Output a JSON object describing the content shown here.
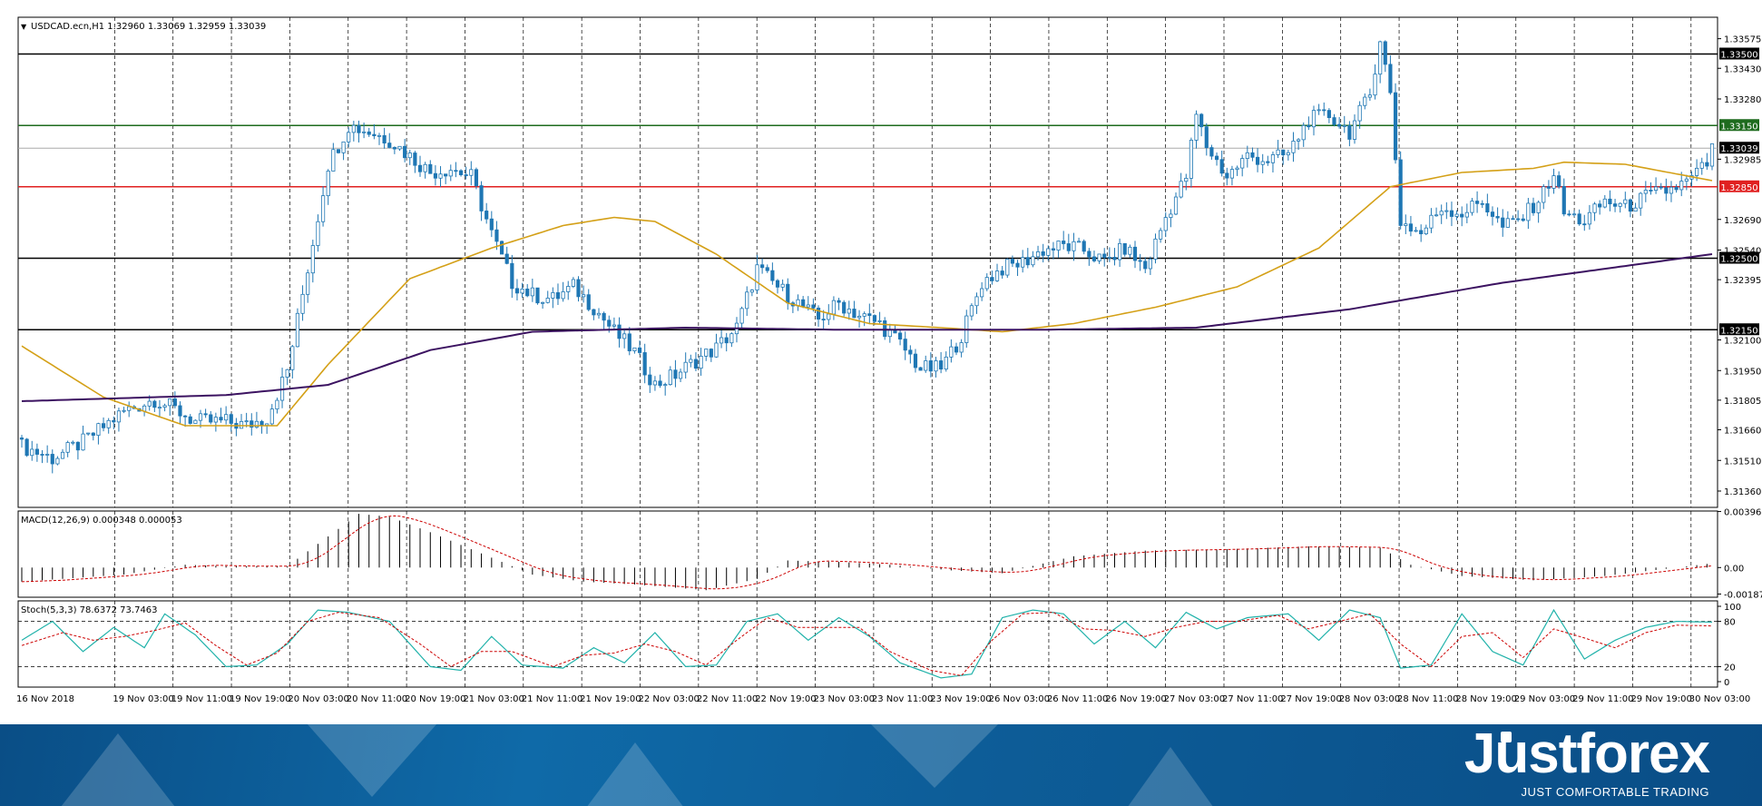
{
  "chart_data": [
    {
      "type": "candlestick",
      "title": "USDCAD.ecn,H1  1.32960 1.33069 1.32959 1.33039",
      "y_ticks": [
        "1.33575",
        "1.33430",
        "1.33280",
        "1.32985",
        "1.32690",
        "1.32540",
        "1.32395",
        "1.32100",
        "1.31950",
        "1.31805",
        "1.31660",
        "1.31510",
        "1.31360"
      ],
      "ylim": [
        1.3128,
        1.3368
      ],
      "levels": [
        {
          "label": "1.33500",
          "value": 1.335,
          "color": "#000000"
        },
        {
          "label": "1.33150",
          "value": 1.3315,
          "color": "#1e6b1e"
        },
        {
          "label": "1.33039",
          "value": 1.33039,
          "color": "#aaaaaa"
        },
        {
          "label": "1.32850",
          "value": 1.3285,
          "color": "#e02020"
        },
        {
          "label": "1.32500",
          "value": 1.325,
          "color": "#000000"
        },
        {
          "label": "1.32150",
          "value": 1.3215,
          "color": "#000000"
        }
      ],
      "close_anchors": [
        [
          0,
          1.3158
        ],
        [
          6,
          1.3152
        ],
        [
          12,
          1.316
        ],
        [
          20,
          1.3175
        ],
        [
          26,
          1.3181
        ],
        [
          30,
          1.3176
        ],
        [
          34,
          1.317
        ],
        [
          40,
          1.317
        ],
        [
          44,
          1.3168
        ],
        [
          48,
          1.3172
        ],
        [
          52,
          1.3195
        ],
        [
          56,
          1.3245
        ],
        [
          60,
          1.3296
        ],
        [
          64,
          1.3315
        ],
        [
          68,
          1.3312
        ],
        [
          72,
          1.3308
        ],
        [
          76,
          1.33
        ],
        [
          80,
          1.3292
        ],
        [
          84,
          1.3294
        ],
        [
          88,
          1.329
        ],
        [
          92,
          1.3262
        ],
        [
          96,
          1.3238
        ],
        [
          100,
          1.3232
        ],
        [
          104,
          1.323
        ],
        [
          108,
          1.3236
        ],
        [
          112,
          1.3226
        ],
        [
          116,
          1.3214
        ],
        [
          120,
          1.3204
        ],
        [
          124,
          1.3188
        ],
        [
          128,
          1.3193
        ],
        [
          132,
          1.32
        ],
        [
          136,
          1.3206
        ],
        [
          140,
          1.3216
        ],
        [
          144,
          1.3245
        ],
        [
          148,
          1.3236
        ],
        [
          152,
          1.3228
        ],
        [
          156,
          1.322
        ],
        [
          160,
          1.3228
        ],
        [
          164,
          1.3222
        ],
        [
          168,
          1.3218
        ],
        [
          172,
          1.3208
        ],
        [
          176,
          1.3196
        ],
        [
          180,
          1.3196
        ],
        [
          184,
          1.3212
        ],
        [
          188,
          1.3238
        ],
        [
          192,
          1.3245
        ],
        [
          196,
          1.3248
        ],
        [
          200,
          1.3254
        ],
        [
          204,
          1.3256
        ],
        [
          208,
          1.3254
        ],
        [
          212,
          1.3248
        ],
        [
          216,
          1.3255
        ],
        [
          220,
          1.3245
        ],
        [
          224,
          1.327
        ],
        [
          228,
          1.329
        ],
        [
          230,
          1.332
        ],
        [
          232,
          1.3305
        ],
        [
          236,
          1.329
        ],
        [
          240,
          1.33
        ],
        [
          244,
          1.3298
        ],
        [
          248,
          1.3301
        ],
        [
          252,
          1.3318
        ],
        [
          256,
          1.332
        ],
        [
          260,
          1.3312
        ],
        [
          264,
          1.333
        ],
        [
          266,
          1.3358
        ],
        [
          268,
          1.333
        ],
        [
          270,
          1.3268
        ],
        [
          274,
          1.3262
        ],
        [
          278,
          1.3275
        ],
        [
          282,
          1.3272
        ],
        [
          286,
          1.3278
        ],
        [
          290,
          1.3265
        ],
        [
          294,
          1.327
        ],
        [
          298,
          1.3282
        ],
        [
          300,
          1.3292
        ],
        [
          302,
          1.3272
        ],
        [
          306,
          1.3268
        ],
        [
          310,
          1.3278
        ],
        [
          314,
          1.3275
        ],
        [
          318,
          1.328
        ],
        [
          322,
          1.3283
        ],
        [
          326,
          1.3287
        ],
        [
          330,
          1.3296
        ],
        [
          331,
          1.33039
        ]
      ],
      "ma_fast_color": "#d4a017",
      "ma_fast_anchors": [
        [
          0,
          1.3207
        ],
        [
          16,
          1.3182
        ],
        [
          32,
          1.3168
        ],
        [
          50,
          1.3168
        ],
        [
          60,
          1.3198
        ],
        [
          76,
          1.324
        ],
        [
          92,
          1.3255
        ],
        [
          106,
          1.3266
        ],
        [
          116,
          1.327
        ],
        [
          124,
          1.3268
        ],
        [
          136,
          1.3252
        ],
        [
          150,
          1.3228
        ],
        [
          166,
          1.3218
        ],
        [
          180,
          1.3216
        ],
        [
          192,
          1.3214
        ],
        [
          206,
          1.3218
        ],
        [
          222,
          1.3226
        ],
        [
          238,
          1.3236
        ],
        [
          254,
          1.3255
        ],
        [
          268,
          1.3285
        ],
        [
          282,
          1.3292
        ],
        [
          296,
          1.3294
        ],
        [
          302,
          1.3297
        ],
        [
          314,
          1.3296
        ],
        [
          331,
          1.3288
        ]
      ],
      "ma_slow_color": "#3c1361",
      "ma_slow_anchors": [
        [
          0,
          1.318
        ],
        [
          40,
          1.3183
        ],
        [
          60,
          1.3188
        ],
        [
          80,
          1.3205
        ],
        [
          100,
          1.3214
        ],
        [
          130,
          1.3216
        ],
        [
          160,
          1.3215
        ],
        [
          200,
          1.3215
        ],
        [
          230,
          1.3216
        ],
        [
          260,
          1.3225
        ],
        [
          290,
          1.3238
        ],
        [
          331,
          1.3252
        ]
      ]
    },
    {
      "type": "bar",
      "title": "MACD(12,26,9) 0.000348 0.000053",
      "y_ticks": [
        "0.003965",
        "0.00",
        "-0.001873"
      ],
      "ylim": [
        -0.0021,
        0.004
      ],
      "hist_anchors": [
        [
          0,
          -0.001
        ],
        [
          20,
          -0.0005
        ],
        [
          32,
          0.0002
        ],
        [
          40,
          0.0001
        ],
        [
          52,
          0.0001
        ],
        [
          60,
          0.0022
        ],
        [
          66,
          0.0038
        ],
        [
          72,
          0.0036
        ],
        [
          80,
          0.0025
        ],
        [
          90,
          0.001
        ],
        [
          100,
          -0.0005
        ],
        [
          110,
          -0.001
        ],
        [
          120,
          -0.0012
        ],
        [
          134,
          -0.0016
        ],
        [
          144,
          -0.0008
        ],
        [
          150,
          0.0005
        ],
        [
          160,
          0.0004
        ],
        [
          170,
          0.0002
        ],
        [
          182,
          -0.0002
        ],
        [
          192,
          -0.0004
        ],
        [
          206,
          0.0008
        ],
        [
          220,
          0.0012
        ],
        [
          236,
          0.0013
        ],
        [
          252,
          0.0015
        ],
        [
          266,
          0.0014
        ],
        [
          272,
          0.0002
        ],
        [
          282,
          -0.0006
        ],
        [
          296,
          -0.0009
        ],
        [
          310,
          -0.0006
        ],
        [
          331,
          0.0003
        ]
      ],
      "signal_color": "#cc0000"
    },
    {
      "type": "line",
      "title": "Stoch(5,3,3) 78.6372 73.7463",
      "y_ticks": [
        "100",
        "80",
        "20",
        "0"
      ],
      "ylim": [
        0,
        100
      ],
      "k_color": "#20b2aa",
      "d_color": "#cc0000",
      "k_anchors": [
        [
          0,
          55
        ],
        [
          6,
          80
        ],
        [
          12,
          40
        ],
        [
          18,
          72
        ],
        [
          24,
          45
        ],
        [
          28,
          90
        ],
        [
          34,
          62
        ],
        [
          40,
          20
        ],
        [
          46,
          22
        ],
        [
          52,
          50
        ],
        [
          58,
          95
        ],
        [
          64,
          92
        ],
        [
          72,
          80
        ],
        [
          80,
          20
        ],
        [
          86,
          15
        ],
        [
          92,
          60
        ],
        [
          98,
          22
        ],
        [
          106,
          18
        ],
        [
          112,
          45
        ],
        [
          118,
          25
        ],
        [
          124,
          65
        ],
        [
          130,
          20
        ],
        [
          136,
          22
        ],
        [
          142,
          80
        ],
        [
          148,
          90
        ],
        [
          154,
          55
        ],
        [
          160,
          85
        ],
        [
          166,
          60
        ],
        [
          172,
          25
        ],
        [
          180,
          5
        ],
        [
          186,
          10
        ],
        [
          192,
          85
        ],
        [
          198,
          95
        ],
        [
          204,
          90
        ],
        [
          210,
          50
        ],
        [
          216,
          80
        ],
        [
          222,
          45
        ],
        [
          228,
          92
        ],
        [
          234,
          70
        ],
        [
          240,
          85
        ],
        [
          248,
          90
        ],
        [
          254,
          55
        ],
        [
          260,
          95
        ],
        [
          266,
          85
        ],
        [
          270,
          18
        ],
        [
          276,
          22
        ],
        [
          282,
          90
        ],
        [
          288,
          40
        ],
        [
          294,
          22
        ],
        [
          300,
          95
        ],
        [
          306,
          30
        ],
        [
          312,
          55
        ],
        [
          318,
          72
        ],
        [
          324,
          80
        ],
        [
          331,
          79
        ]
      ],
      "d_anchors": [
        [
          0,
          48
        ],
        [
          8,
          65
        ],
        [
          14,
          55
        ],
        [
          20,
          60
        ],
        [
          26,
          68
        ],
        [
          32,
          78
        ],
        [
          38,
          48
        ],
        [
          44,
          22
        ],
        [
          50,
          38
        ],
        [
          56,
          80
        ],
        [
          62,
          92
        ],
        [
          70,
          85
        ],
        [
          78,
          50
        ],
        [
          84,
          20
        ],
        [
          90,
          40
        ],
        [
          96,
          40
        ],
        [
          104,
          20
        ],
        [
          110,
          35
        ],
        [
          116,
          38
        ],
        [
          122,
          50
        ],
        [
          128,
          40
        ],
        [
          134,
          22
        ],
        [
          140,
          55
        ],
        [
          146,
          85
        ],
        [
          152,
          72
        ],
        [
          158,
          72
        ],
        [
          164,
          72
        ],
        [
          170,
          40
        ],
        [
          178,
          15
        ],
        [
          184,
          8
        ],
        [
          190,
          55
        ],
        [
          196,
          90
        ],
        [
          202,
          92
        ],
        [
          208,
          70
        ],
        [
          214,
          68
        ],
        [
          220,
          60
        ],
        [
          226,
          72
        ],
        [
          232,
          80
        ],
        [
          238,
          80
        ],
        [
          246,
          88
        ],
        [
          252,
          70
        ],
        [
          258,
          80
        ],
        [
          264,
          90
        ],
        [
          270,
          50
        ],
        [
          276,
          20
        ],
        [
          282,
          60
        ],
        [
          288,
          65
        ],
        [
          294,
          32
        ],
        [
          300,
          70
        ],
        [
          306,
          58
        ],
        [
          312,
          45
        ],
        [
          318,
          65
        ],
        [
          324,
          75
        ],
        [
          331,
          74
        ]
      ]
    }
  ],
  "x_labels": [
    "16 Nov 2018",
    "19 Nov 03:00",
    "19 Nov 11:00",
    "19 Nov 19:00",
    "20 Nov 03:00",
    "20 Nov 11:00",
    "20 Nov 19:00",
    "21 Nov 03:00",
    "21 Nov 11:00",
    "21 Nov 19:00",
    "22 Nov 03:00",
    "22 Nov 11:00",
    "22 Nov 19:00",
    "23 Nov 03:00",
    "23 Nov 11:00",
    "23 Nov 19:00",
    "26 Nov 03:00",
    "26 Nov 11:00",
    "26 Nov 19:00",
    "27 Nov 03:00",
    "27 Nov 11:00",
    "27 Nov 19:00",
    "28 Nov 03:00",
    "28 Nov 11:00",
    "28 Nov 19:00",
    "29 Nov 03:00",
    "29 Nov 11:00",
    "29 Nov 19:00",
    "30 Nov 03:00"
  ],
  "banner": {
    "brand": "Justforex",
    "tagline": "JUST COMFORTABLE TRADING"
  },
  "colors": {
    "bull": "#ffffff",
    "bear": "#1f77b4",
    "outline": "#1f77b4",
    "grid": "#000000"
  }
}
